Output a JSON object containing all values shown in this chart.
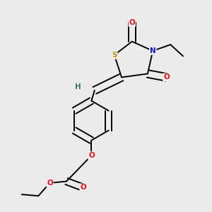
{
  "background_color": "#ebebeb",
  "atom_colors": {
    "S": "#b8a000",
    "N": "#1010ee",
    "O": "#ee1010",
    "C": "#000000",
    "H": "#3a7070"
  },
  "bond_color": "#000000",
  "bond_width": 1.4,
  "figsize": [
    3.0,
    3.0
  ],
  "dpi": 100,
  "xlim": [
    0.0,
    1.0
  ],
  "ylim": [
    0.0,
    1.0
  ]
}
